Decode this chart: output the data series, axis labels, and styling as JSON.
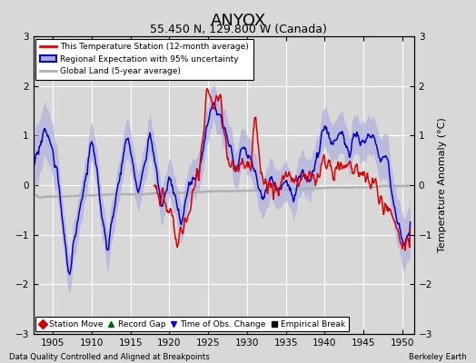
{
  "title": "ANYOX",
  "subtitle": "55.450 N, 129.800 W (Canada)",
  "ylabel": "Temperature Anomaly (°C)",
  "xlabel_left": "Data Quality Controlled and Aligned at Breakpoints",
  "xlabel_right": "Berkeley Earth",
  "year_start": 1902,
  "year_end": 1951,
  "xlim": [
    1902.5,
    1951.5
  ],
  "ylim": [
    -3,
    3
  ],
  "yticks": [
    -3,
    -2,
    -1,
    0,
    1,
    2,
    3
  ],
  "xticks": [
    1905,
    1910,
    1915,
    1920,
    1925,
    1930,
    1935,
    1940,
    1945,
    1950
  ],
  "bg_color": "#d8d8d8",
  "plot_bg_color": "#d8d8d8",
  "grid_color": "#ffffff",
  "red_line_color": "#dd0000",
  "blue_line_color": "#0000cc",
  "blue_fill_color": "#aaaadd",
  "gray_line_color": "#b0b0b0",
  "legend_items": [
    "This Temperature Station (12-month average)",
    "Regional Expectation with 95% uncertainty",
    "Global Land (5-year average)"
  ],
  "bottom_legend": [
    {
      "marker": "D",
      "color": "#cc0000",
      "label": "Station Move"
    },
    {
      "marker": "^",
      "color": "#006600",
      "label": "Record Gap"
    },
    {
      "marker": "v",
      "color": "#0000cc",
      "label": "Time of Obs. Change"
    },
    {
      "marker": "s",
      "color": "#000000",
      "label": "Empirical Break"
    }
  ]
}
